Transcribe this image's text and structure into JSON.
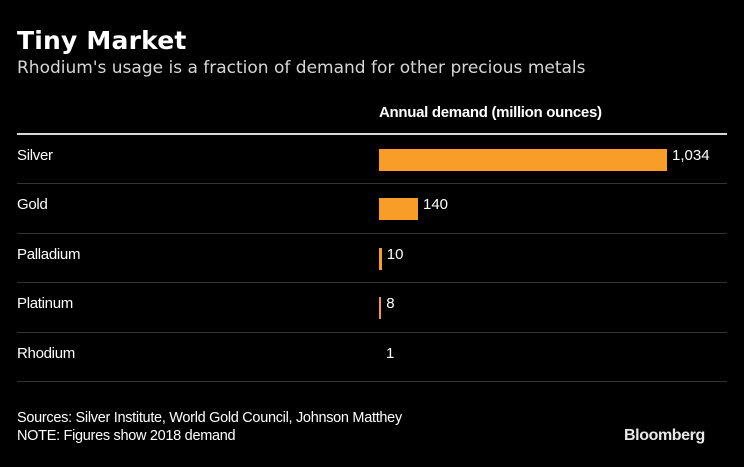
{
  "chart_data": {
    "type": "bar",
    "orientation": "horizontal",
    "title": "Tiny Market",
    "subtitle": "Rhodium's usage is a fraction of demand for other precious metals",
    "xlabel": "Annual demand (million ounces)",
    "ylabel": "",
    "categories": [
      "Silver",
      "Gold",
      "Palladium",
      "Platinum",
      "Rhodium"
    ],
    "values": [
      1034,
      140,
      10,
      8,
      1
    ],
    "value_labels": [
      "1,034",
      "140",
      "10",
      "8",
      "1"
    ],
    "xlim": [
      0,
      1034
    ],
    "grid": false,
    "legend": null,
    "bar_color": "#f89d28"
  },
  "footer": {
    "sources": "Sources: Silver Institute, World Gold Council, Johnson Matthey",
    "note": "NOTE: Figures show 2018 demand"
  },
  "brand": "Bloomberg"
}
